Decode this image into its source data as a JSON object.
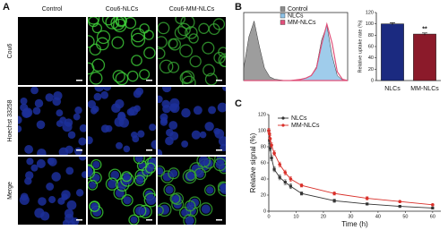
{
  "panel_labels": [
    "A",
    "B",
    "C"
  ],
  "microscopy": {
    "columns": [
      "Control",
      "Cou6-NLCs",
      "Cou6-MM-NLCs"
    ],
    "rows": [
      "Cou6",
      "Hoechst 33258",
      "Merge"
    ]
  },
  "chart_data": [
    {
      "type": "density",
      "x": [
        0,
        0.2,
        0.4,
        0.6,
        0.8,
        1,
        1.2,
        1.4,
        1.6,
        1.8,
        2,
        2.2,
        2.4,
        2.6,
        2.8,
        3,
        3.2,
        3.4,
        3.6,
        3.8,
        4
      ],
      "xlim": [
        0,
        4
      ],
      "ylim": [
        0,
        100
      ],
      "legend": "top-right",
      "series": [
        {
          "name": "Control",
          "color": "#8c8c8c",
          "values": [
            20,
            70,
            95,
            55,
            20,
            6,
            2,
            1,
            0,
            0,
            0,
            0,
            0,
            0,
            0,
            0,
            0,
            0,
            0,
            0,
            0
          ]
        },
        {
          "name": "NLCs",
          "color": "#8ec3e8",
          "values": [
            0,
            0,
            0,
            0,
            0,
            0,
            0,
            0,
            0,
            0,
            1,
            2,
            4,
            8,
            22,
            65,
            88,
            40,
            8,
            1,
            0
          ]
        },
        {
          "name": "MM-NLCs",
          "color": "#e0507a",
          "values": [
            0,
            0,
            0,
            0,
            0,
            0,
            0,
            0,
            0,
            0,
            1,
            2,
            4,
            8,
            20,
            58,
            90,
            60,
            14,
            2,
            0
          ]
        }
      ]
    },
    {
      "type": "bar",
      "ylabel": "Relative uptake rate (%)",
      "categories": [
        "NLCs",
        "MM-NLCs"
      ],
      "values": [
        100,
        82
      ],
      "errors": [
        2,
        2
      ],
      "colors": [
        "#1b2a80",
        "#8b1a2a"
      ],
      "annotations": [
        null,
        "**"
      ],
      "ylim": [
        0,
        120
      ],
      "yticks": [
        0,
        20,
        40,
        60,
        80,
        100,
        120
      ]
    },
    {
      "type": "line",
      "xlabel": "Time (h)",
      "ylabel": "Relative signal (%)",
      "legend": "top-left",
      "x": [
        0,
        0.25,
        0.5,
        1,
        2,
        4,
        6,
        8,
        12,
        24,
        36,
        48,
        60
      ],
      "xlim": [
        0,
        63
      ],
      "xticks": [
        0,
        10,
        20,
        30,
        40,
        50,
        60
      ],
      "ylim": [
        0,
        120
      ],
      "yticks": [
        0,
        20,
        40,
        60,
        80,
        100,
        120
      ],
      "series": [
        {
          "name": "NLCs",
          "color": "#333333",
          "values": [
            100,
            88,
            78,
            66,
            52,
            42,
            36,
            31,
            22,
            13,
            9,
            6,
            4
          ],
          "errors": [
            3,
            4,
            3,
            3,
            3,
            3,
            3,
            3,
            2,
            2,
            1,
            1,
            1
          ]
        },
        {
          "name": "MM-NLCs",
          "color": "#d9302a",
          "values": [
            100,
            96,
            90,
            82,
            72,
            58,
            48,
            40,
            32,
            22,
            16,
            12,
            8
          ],
          "errors": [
            3,
            4,
            4,
            3,
            3,
            3,
            3,
            3,
            2,
            2,
            2,
            1,
            1
          ]
        }
      ]
    }
  ]
}
